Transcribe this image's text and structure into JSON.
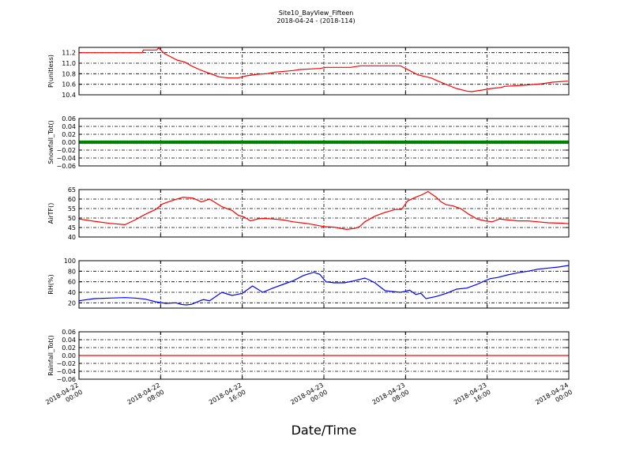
{
  "figure": {
    "title_line1": "Site10_BayView_Fifteen",
    "title_line2": "2018-04-24 - (2018-114)",
    "xlabel": "Date/Time"
  },
  "x_ticks": [
    {
      "hours": 0,
      "label1": "2018-04-22",
      "label2": "00:00"
    },
    {
      "hours": 8,
      "label1": "2018-04-22",
      "label2": "08:00"
    },
    {
      "hours": 16,
      "label1": "2018-04-22",
      "label2": "16:00"
    },
    {
      "hours": 24,
      "label1": "2018-04-23",
      "label2": "00:00"
    },
    {
      "hours": 32,
      "label1": "2018-04-23",
      "label2": "08:00"
    },
    {
      "hours": 40,
      "label1": "2018-04-23",
      "label2": "16:00"
    },
    {
      "hours": 48,
      "label1": "2018-04-24",
      "label2": "00:00"
    }
  ],
  "chart_data": [
    {
      "type": "line",
      "ylabel": "P(unitless)",
      "ylim": [
        10.4,
        11.3
      ],
      "yticks": [
        11.2,
        11.0,
        10.8,
        10.6,
        10.4
      ],
      "ytick_labels": [
        "11.2",
        "11.0",
        "10.8",
        "10.6",
        "10.4"
      ],
      "xlim": [
        "2018-04-22 00:00",
        "2018-04-24 00:00"
      ],
      "grid": true,
      "series": [
        {
          "color": "#ff0000",
          "marker": false,
          "x": [
            0,
            6.2,
            6.3,
            7.6,
            7.8,
            8.4,
            9.0,
            9.6,
            10.4,
            11.0,
            11.8,
            12.6,
            13.2,
            13.7,
            14.7,
            15.6,
            16.0,
            16.4,
            17.5,
            18.4,
            19.2,
            21.0,
            21.6,
            23.6,
            24.2,
            26.6,
            27.6,
            31.5,
            32.4,
            33.2,
            34.5,
            35.2,
            36.2,
            37.0,
            38.0,
            38.5,
            39.5,
            40.4,
            41.4,
            41.7,
            43.5,
            45.4,
            46.4,
            47.9
          ],
          "y": [
            11.2,
            11.2,
            11.25,
            11.25,
            11.29,
            11.18,
            11.12,
            11.06,
            11.02,
            10.95,
            10.88,
            10.82,
            10.78,
            10.74,
            10.72,
            10.72,
            10.74,
            10.76,
            10.79,
            10.8,
            10.83,
            10.86,
            10.88,
            10.9,
            10.92,
            10.92,
            10.95,
            10.95,
            10.86,
            10.78,
            10.72,
            10.66,
            10.58,
            10.52,
            10.47,
            10.46,
            10.49,
            10.52,
            10.54,
            10.56,
            10.58,
            10.61,
            10.64,
            10.66
          ]
        }
      ]
    },
    {
      "type": "line",
      "ylabel": "Snowfall_Tot()",
      "ylim": [
        -0.06,
        0.06
      ],
      "yticks": [
        0.06,
        0.04,
        0.02,
        0.0,
        -0.02,
        -0.04,
        -0.06
      ],
      "ytick_labels": [
        "0.06",
        "0.04",
        "0.02",
        "0.00",
        "−0.02",
        "−0.04",
        "−0.06"
      ],
      "xlim": [
        "2018-04-22 00:00",
        "2018-04-24 00:00"
      ],
      "grid": true,
      "series": [
        {
          "color": "#008000",
          "marker": true,
          "x": [
            0,
            48
          ],
          "y": [
            0.0,
            0.0
          ]
        }
      ]
    },
    {
      "type": "line",
      "ylabel": "AirTF()",
      "ylim": [
        40,
        65
      ],
      "yticks": [
        65,
        60,
        55,
        50,
        45,
        40
      ],
      "ytick_labels": [
        "65",
        "60",
        "55",
        "50",
        "45",
        "40"
      ],
      "xlim": [
        "2018-04-22 00:00",
        "2018-04-24 00:00"
      ],
      "grid": true,
      "series": [
        {
          "color": "#ff0000",
          "marker": false,
          "x": [
            0,
            1.5,
            3.0,
            4.5,
            5.5,
            6.5,
            7.5,
            8.2,
            9.0,
            10.2,
            11.2,
            12.0,
            12.8,
            14.0,
            15.0,
            15.6,
            16.2,
            16.8,
            17.5,
            18.0,
            19.0,
            20.0,
            21.0,
            22.5,
            24.0,
            25.0,
            26.2,
            27.0,
            27.5,
            28.0,
            29.0,
            30.0,
            31.0,
            31.6,
            32.2,
            33.0,
            33.7,
            34.2,
            35.0,
            35.5,
            36.0,
            36.6,
            37.4,
            38.2,
            39.0,
            39.8,
            40.5,
            41.2,
            42.0,
            43.0,
            44.0,
            45.0,
            46.0,
            47.3,
            48.0
          ],
          "y": [
            49.5,
            48.3,
            47.2,
            46.5,
            49.0,
            52.0,
            54.5,
            57.5,
            59.0,
            61.0,
            60.5,
            58.5,
            60.0,
            56.0,
            54.0,
            51.5,
            50.5,
            48.5,
            49.5,
            49.8,
            49.5,
            49.0,
            48.0,
            47.0,
            45.5,
            45.2,
            44.0,
            44.5,
            45.5,
            48.0,
            51.0,
            53.0,
            54.5,
            54.5,
            59.0,
            61.0,
            62.5,
            64.0,
            61.0,
            58.5,
            57.0,
            56.5,
            55.0,
            52.0,
            49.5,
            48.5,
            48.0,
            49.5,
            49.0,
            48.5,
            48.5,
            48.0,
            47.5,
            47.3,
            47.0
          ]
        }
      ]
    },
    {
      "type": "line",
      "ylabel": "RH(%)",
      "ylim": [
        10,
        100
      ],
      "yticks": [
        100,
        80,
        60,
        40,
        20
      ],
      "ytick_labels": [
        "100",
        "80",
        "60",
        "40",
        "20"
      ],
      "xlim": [
        "2018-04-22 00:00",
        "2018-04-24 00:00"
      ],
      "grid": true,
      "series": [
        {
          "color": "#0000ff",
          "marker": false,
          "x": [
            0,
            1.5,
            3.0,
            4.5,
            5.5,
            6.5,
            7.5,
            8.5,
            9.5,
            10.0,
            10.5,
            11.0,
            12.0,
            12.2,
            12.8,
            14.0,
            14.5,
            15.0,
            15.5,
            16.0,
            17.0,
            18.0,
            19.0,
            20.0,
            21.0,
            22.0,
            22.5,
            23.0,
            23.6,
            24.2,
            25.0,
            26.0,
            27.0,
            28.0,
            28.4,
            29.0,
            30.0,
            31.0,
            31.5,
            32.0,
            32.4,
            33.0,
            33.5,
            34.0,
            35.0,
            36.0,
            37.0,
            38.0,
            39.0,
            39.8,
            40.3,
            41.0,
            42.0,
            43.0,
            44.0,
            45.0,
            46.0,
            47.0,
            48.0
          ],
          "y": [
            24,
            28,
            29,
            30,
            29,
            27,
            22,
            19,
            20,
            17,
            16,
            17,
            25,
            26,
            24,
            40,
            37,
            34,
            36,
            38,
            52,
            40,
            48,
            55,
            62,
            72,
            75,
            78,
            74,
            60,
            58,
            58,
            62,
            67,
            64,
            58,
            43,
            41,
            40,
            42,
            44,
            36,
            38,
            28,
            32,
            38,
            46,
            48,
            55,
            62,
            66,
            68,
            73,
            77,
            80,
            84,
            86,
            88,
            91
          ]
        }
      ]
    },
    {
      "type": "line",
      "ylabel": "Rainfall_Tot()",
      "ylim": [
        -0.06,
        0.06
      ],
      "yticks": [
        0.06,
        0.04,
        0.02,
        0.0,
        -0.02,
        -0.04,
        -0.06
      ],
      "ytick_labels": [
        "0.06",
        "0.04",
        "0.02",
        "0.00",
        "−0.02",
        "−0.04",
        "−0.06"
      ],
      "xlim": [
        "2018-04-22 00:00",
        "2018-04-24 00:00"
      ],
      "grid": true,
      "series": [
        {
          "color": "#ff0000",
          "marker": false,
          "x": [
            0,
            48
          ],
          "y": [
            0.0,
            0.0
          ]
        }
      ]
    }
  ]
}
